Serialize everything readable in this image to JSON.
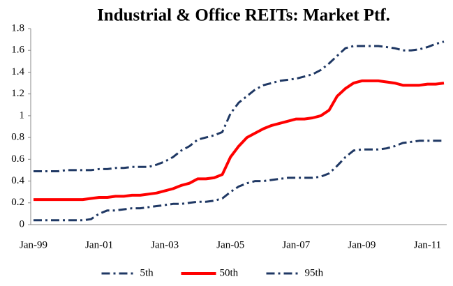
{
  "chart_data": {
    "type": "line",
    "title": "Industrial & Office REITs: Market Ptf.",
    "categories": [
      "Jan-99",
      null,
      null,
      null,
      null,
      null,
      null,
      null,
      "Jan-01",
      null,
      null,
      null,
      null,
      null,
      null,
      null,
      "Jan-03",
      null,
      null,
      null,
      null,
      null,
      null,
      null,
      "Jan-05",
      null,
      null,
      null,
      null,
      null,
      null,
      null,
      "Jan-07",
      null,
      null,
      null,
      null,
      null,
      null,
      null,
      "Jan-09",
      null,
      null,
      null,
      null,
      null,
      null,
      null,
      "Jan-11",
      null,
      null
    ],
    "series": [
      {
        "name": "5th",
        "color": "#1f3864",
        "dash": true,
        "values": [
          0.04,
          0.04,
          0.04,
          0.04,
          0.04,
          0.04,
          0.04,
          0.05,
          0.1,
          0.13,
          0.13,
          0.14,
          0.15,
          0.15,
          0.16,
          0.17,
          0.18,
          0.19,
          0.19,
          0.2,
          0.21,
          0.21,
          0.22,
          0.24,
          0.3,
          0.35,
          0.38,
          0.4,
          0.4,
          0.41,
          0.42,
          0.43,
          0.43,
          0.43,
          0.43,
          0.44,
          0.47,
          0.54,
          0.62,
          0.68,
          0.69,
          0.69,
          0.69,
          0.7,
          0.72,
          0.75,
          0.76,
          0.77,
          0.77,
          0.77,
          0.77
        ]
      },
      {
        "name": "50th",
        "color": "#ff0000",
        "dash": false,
        "values": [
          0.23,
          0.23,
          0.23,
          0.23,
          0.23,
          0.23,
          0.23,
          0.24,
          0.25,
          0.25,
          0.26,
          0.26,
          0.27,
          0.27,
          0.28,
          0.29,
          0.31,
          0.33,
          0.36,
          0.38,
          0.42,
          0.42,
          0.43,
          0.46,
          0.62,
          0.72,
          0.8,
          0.84,
          0.88,
          0.91,
          0.93,
          0.95,
          0.97,
          0.97,
          0.98,
          1.0,
          1.05,
          1.18,
          1.25,
          1.3,
          1.32,
          1.32,
          1.32,
          1.31,
          1.3,
          1.28,
          1.28,
          1.28,
          1.29,
          1.29,
          1.3
        ]
      },
      {
        "name": "95th",
        "color": "#1f3864",
        "dash": true,
        "values": [
          0.49,
          0.49,
          0.49,
          0.49,
          0.5,
          0.5,
          0.5,
          0.5,
          0.51,
          0.51,
          0.52,
          0.52,
          0.53,
          0.53,
          0.53,
          0.55,
          0.58,
          0.62,
          0.68,
          0.72,
          0.78,
          0.8,
          0.82,
          0.85,
          1.02,
          1.12,
          1.18,
          1.24,
          1.28,
          1.3,
          1.32,
          1.33,
          1.34,
          1.36,
          1.38,
          1.42,
          1.48,
          1.55,
          1.62,
          1.64,
          1.64,
          1.64,
          1.64,
          1.63,
          1.62,
          1.6,
          1.6,
          1.61,
          1.63,
          1.66,
          1.68
        ]
      }
    ],
    "ylim": [
      0,
      1.8
    ],
    "yticks": [
      0,
      0.2,
      0.4,
      0.6,
      0.8,
      1,
      1.2,
      1.4,
      1.6,
      1.8
    ],
    "grid": false,
    "legend": "bottom"
  }
}
